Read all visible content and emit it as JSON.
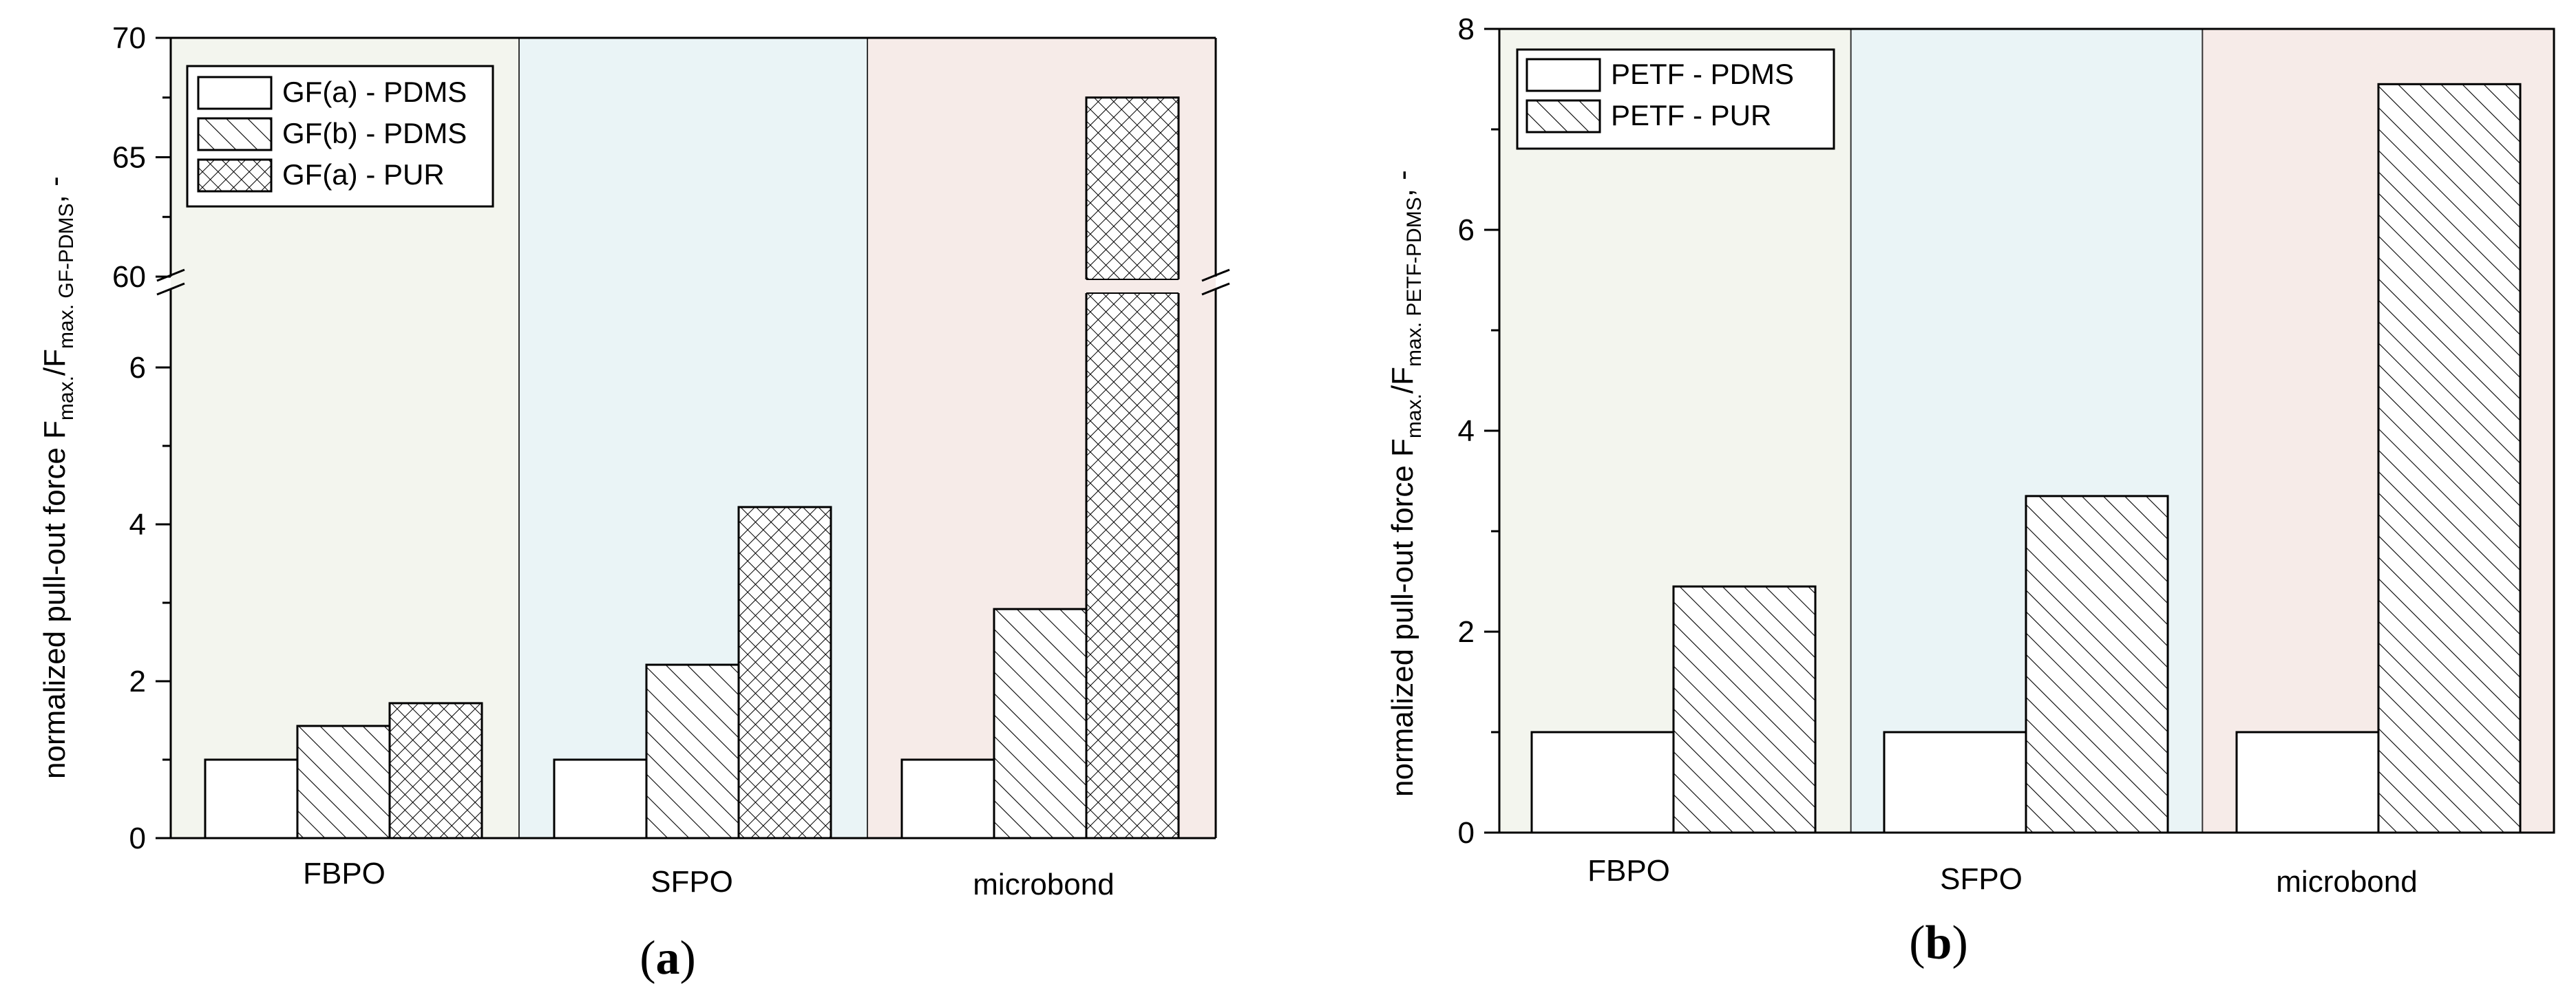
{
  "chart_data": [
    {
      "panel": "a",
      "type": "bar",
      "ylabel": "normalized pull-out force F",
      "ylabel_subscript_1": "max.",
      "ylabel_mid": "/F",
      "ylabel_subscript_2": "max. GF-PDMS",
      "ylabel_tail": ", -",
      "y_break": [
        7,
        60
      ],
      "ylim_lower": [
        0,
        7
      ],
      "ylim_upper": [
        60,
        70
      ],
      "yticks_lower": [
        "0",
        "2",
        "4",
        "6"
      ],
      "yticks_upper": [
        "60",
        "65",
        "70"
      ],
      "categories": [
        "FBPO",
        "SFPO",
        "microbond"
      ],
      "region_colors": [
        "#f3f5ee",
        "#eaf4f6",
        "#f6ebe8"
      ],
      "legend_position": "top-left",
      "series": [
        {
          "name": "GF(a) - PDMS",
          "pattern": "none",
          "values": [
            1.0,
            1.0,
            1.0
          ]
        },
        {
          "name": "GF(b) - PDMS",
          "pattern": "diagonal",
          "values": [
            1.43,
            2.21,
            2.92
          ]
        },
        {
          "name": "GF(a) - PUR",
          "pattern": "crosshatch",
          "values": [
            1.72,
            4.22,
            67.5
          ]
        }
      ],
      "panel_label": "a"
    },
    {
      "panel": "b",
      "type": "bar",
      "ylabel": "normalized pull-out force F",
      "ylabel_subscript_1": "max.",
      "ylabel_mid": "/F",
      "ylabel_subscript_2": "max. PETF-PDMS",
      "ylabel_tail": ", -",
      "ylim": [
        0,
        8
      ],
      "yticks": [
        "0",
        "2",
        "4",
        "6",
        "8"
      ],
      "categories": [
        "FBPO",
        "SFPO",
        "microbond"
      ],
      "region_colors": [
        "#f3f5ee",
        "#eaf4f6",
        "#f6ebe8"
      ],
      "legend_position": "top-left",
      "series": [
        {
          "name": "PETF - PDMS",
          "pattern": "none",
          "values": [
            1.0,
            1.0,
            1.0
          ]
        },
        {
          "name": "PETF - PUR",
          "pattern": "diagonal",
          "values": [
            2.45,
            3.35,
            7.45
          ]
        }
      ],
      "panel_label": "b"
    }
  ]
}
